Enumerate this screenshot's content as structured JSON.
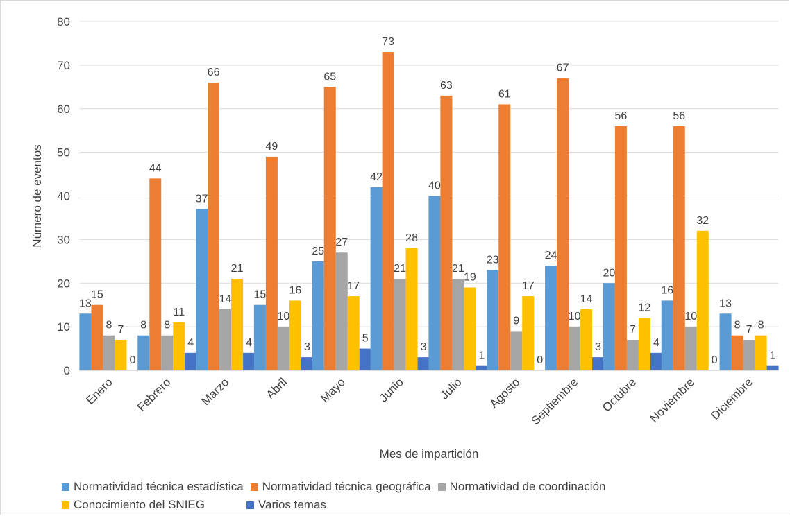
{
  "chart_data": {
    "type": "bar",
    "xlabel": "Mes de impartición",
    "ylabel": "Número de eventos",
    "ylim": [
      0,
      80
    ],
    "yticks": [
      0,
      10,
      20,
      30,
      40,
      50,
      60,
      70,
      80
    ],
    "grid": true,
    "legend_position": "bottom",
    "categories": [
      "Enero",
      "Febrero",
      "Marzo",
      "Abril",
      "Mayo",
      "Junio",
      "Julio",
      "Agosto",
      "Septiembre",
      "Octubre",
      "Noviembre",
      "Diciembre"
    ],
    "series": [
      {
        "name": "Normatividad técnica estadística",
        "color": "#5b9bd5",
        "values": [
          13,
          8,
          37,
          15,
          25,
          42,
          40,
          23,
          24,
          20,
          16,
          13
        ]
      },
      {
        "name": "Normatividad técnica geográfica",
        "color": "#ed7d31",
        "values": [
          15,
          44,
          66,
          49,
          65,
          73,
          63,
          61,
          67,
          56,
          56,
          8
        ]
      },
      {
        "name": "Normatividad de coordinación",
        "color": "#a5a5a5",
        "values": [
          8,
          8,
          14,
          10,
          27,
          21,
          21,
          9,
          10,
          7,
          10,
          7
        ]
      },
      {
        "name": "Conocimiento del SNIEG",
        "color": "#ffc000",
        "values": [
          7,
          11,
          21,
          16,
          17,
          28,
          19,
          17,
          14,
          12,
          32,
          8
        ]
      },
      {
        "name": "Varios temas",
        "color": "#4472c4",
        "values": [
          0,
          4,
          4,
          3,
          5,
          3,
          1,
          0,
          3,
          4,
          0,
          1
        ]
      }
    ]
  }
}
